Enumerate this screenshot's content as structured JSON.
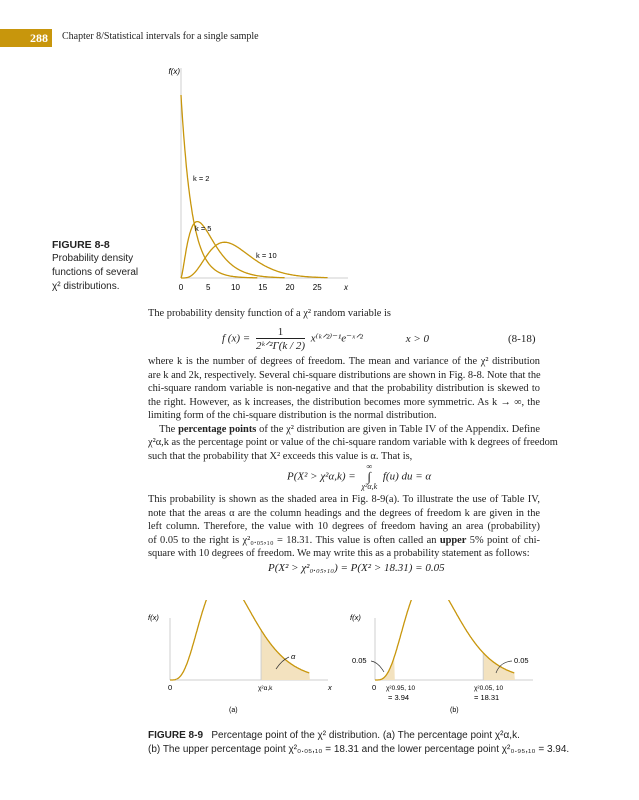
{
  "header": {
    "page_number": "288",
    "chapter": "Chapter 8/Statistical intervals for a single sample"
  },
  "colors": {
    "accent": "#c8960c",
    "curve": "#c8960c",
    "shade": "#f3e2bf",
    "axis": "#cfcfcf"
  },
  "figure_8_8": {
    "label": "FIGURE 8-8",
    "caption_lines": [
      "Probability density",
      "functions of several",
      "χ² distributions."
    ],
    "chart_data": {
      "type": "line",
      "ylabel": "f(x)",
      "xlabel": "x",
      "x_ticks": [
        "0",
        "5",
        "10",
        "15",
        "20",
        "25"
      ],
      "xlim": [
        0,
        30
      ],
      "series": [
        {
          "name": "k = 2",
          "k": 2
        },
        {
          "name": "k = 5",
          "k": 5
        },
        {
          "name": "k = 10",
          "k": 10
        }
      ]
    }
  },
  "body": {
    "lines1": [
      [
        {
          "t": "The probability density function of a χ² random variable is"
        }
      ]
    ],
    "eq1": {
      "lhs": "f (x) =",
      "num": "1",
      "den": "2ᵏᐟ²Γ(k / 2)",
      "rhs": "x⁽ᵏᐟ²⁾⁻¹e⁻ˣᐟ²",
      "cond": "x > 0",
      "number": "(8-18)"
    },
    "lines2": [
      [
        {
          "t": "where k is the number of degrees of freedom. The mean and variance of the χ² distribution"
        }
      ],
      [
        {
          "t": "are k and 2k, respectively. Several chi-square distributions are shown in Fig. 8-8. Note that the"
        }
      ],
      [
        {
          "t": "chi-square random variable is non-negative and that the probability distribution is skewed to"
        }
      ],
      [
        {
          "t": "the right. However, as k increases, the distribution becomes more symmetric. As k → ∞, the"
        }
      ],
      [
        {
          "t": "limiting form of the chi-square distribution is the normal distribution."
        }
      ],
      [
        {
          "t": "    The "
        },
        {
          "t": "percentage points",
          "b": true
        },
        {
          "t": " of the χ² distribution are given in Table IV of the Appendix. Define"
        }
      ],
      [
        {
          "t": "χ²α,k as the percentage point or value of the chi-square random variable with k degrees of freedom"
        }
      ],
      [
        {
          "t": "such that the probability that X² exceeds this value is α. That is,"
        }
      ]
    ],
    "eq2": {
      "lhs": "P(X² > χ²α,k) =",
      "upper": "∞",
      "integral": "∫",
      "lower": "χ²α,k",
      "rhs": "f(u) du = α"
    },
    "lines3": [
      [
        {
          "t": "This probability is shown as the shaded area in Fig. 8-9(a). To illustrate the use of Table IV,"
        }
      ],
      [
        {
          "t": "note that the areas α are the column headings and the degrees of freedom k are given in the"
        }
      ],
      [
        {
          "t": "left column. Therefore, the value with 10 degrees of freedom having an area (probability)"
        }
      ],
      [
        {
          "t": "of 0.05 to the right is χ²₀.₀₅,₁₀ = 18.31. This value is often called an "
        },
        {
          "t": "upper",
          "b": true
        },
        {
          "t": " 5% point of chi-"
        }
      ],
      [
        {
          "t": "square with 10 degrees of freedom. We may write this as a probability statement as follows:"
        }
      ]
    ],
    "eq3": "P(X² > χ²₀.₀₅,₁₀) = P(X² > 18.31) = 0.05"
  },
  "figure_8_9": {
    "label": "FIGURE 8-9",
    "caption_line1": "Percentage point of the χ² distribution. (a) The percentage point χ²α,k.",
    "caption_line2": "(b) The upper percentage point χ²₀.₀₅,₁₀ = 18.31 and the lower percentage point χ²₀.₉₅,₁₀ = 3.94.",
    "panel_a": {
      "ylabel": "f(x)",
      "xlabel": "x",
      "origin": "0",
      "point_label": "χ²α,k",
      "area_label": "α",
      "sublabel": "(a)"
    },
    "panel_b": {
      "ylabel": "f(x)",
      "origin": "0",
      "lower_point": "χ²0.95, 10",
      "lower_value": "= 3.94",
      "upper_point": "χ²0.05, 10",
      "upper_value": "= 18.31",
      "lower_area": "0.05",
      "upper_area": "0.05",
      "sublabel": "(b)"
    },
    "chart_data": {
      "type": "area",
      "k": 10,
      "lower_point": 3.94,
      "upper_point": 18.31,
      "alpha": 0.05
    }
  }
}
